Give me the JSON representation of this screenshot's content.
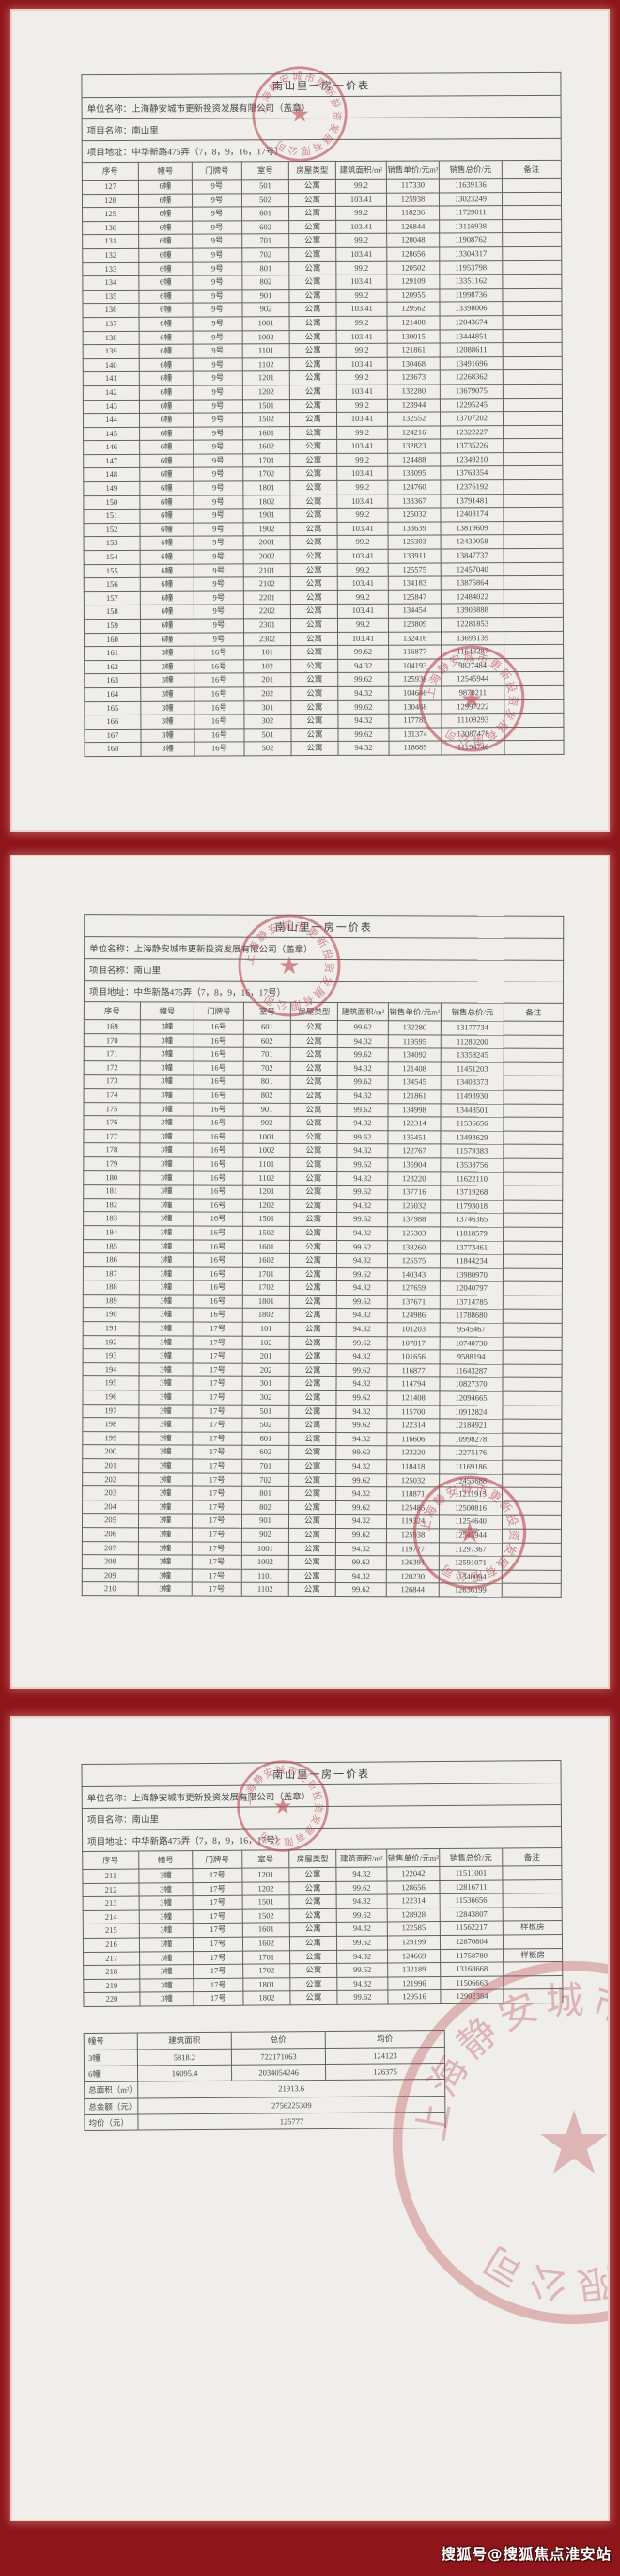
{
  "watermark": "搜狐号@搜狐焦点淮安站",
  "colors": {
    "background": "#8e1519",
    "page": "#efeeea",
    "seal": "#bc4950",
    "line": "#63625d"
  },
  "seal": {
    "text": "上海静安城市更新投资发展有限公司"
  },
  "header": {
    "title": "南山里一房一价表",
    "unit_line": "单位名称：上海静安城市更新投资发展有限公司（盖章）",
    "project_line": "项目名称：南山里",
    "address_line": "项目地址：中华新路475弄（7，8，9，16，17号）"
  },
  "columns": [
    "序号",
    "幢号",
    "门牌号",
    "室号",
    "房屋类型",
    "建筑面积/m²",
    "销售单价/元m²",
    "销售总价/元",
    "备注"
  ],
  "pages": [
    {
      "rows": [
        [
          "127",
          "6幢",
          "9号",
          "501",
          "公寓",
          "99.2",
          "117330",
          "11639136",
          ""
        ],
        [
          "128",
          "6幢",
          "9号",
          "502",
          "公寓",
          "103.41",
          "125938",
          "13023249",
          ""
        ],
        [
          "129",
          "6幢",
          "9号",
          "601",
          "公寓",
          "99.2",
          "118236",
          "11729011",
          ""
        ],
        [
          "130",
          "6幢",
          "9号",
          "602",
          "公寓",
          "103.41",
          "126844",
          "13116938",
          ""
        ],
        [
          "131",
          "6幢",
          "9号",
          "701",
          "公寓",
          "99.2",
          "120048",
          "11908762",
          ""
        ],
        [
          "132",
          "6幢",
          "9号",
          "702",
          "公寓",
          "103.41",
          "128656",
          "13304317",
          ""
        ],
        [
          "133",
          "6幢",
          "9号",
          "801",
          "公寓",
          "99.2",
          "120502",
          "11953798",
          ""
        ],
        [
          "134",
          "6幢",
          "9号",
          "802",
          "公寓",
          "103.41",
          "129109",
          "13351162",
          ""
        ],
        [
          "135",
          "6幢",
          "9号",
          "901",
          "公寓",
          "99.2",
          "120955",
          "11998736",
          ""
        ],
        [
          "136",
          "6幢",
          "9号",
          "902",
          "公寓",
          "103.41",
          "129562",
          "13398006",
          ""
        ],
        [
          "137",
          "6幢",
          "9号",
          "1001",
          "公寓",
          "99.2",
          "121408",
          "12043674",
          ""
        ],
        [
          "138",
          "6幢",
          "9号",
          "1002",
          "公寓",
          "103.41",
          "130015",
          "13444851",
          ""
        ],
        [
          "139",
          "6幢",
          "9号",
          "1101",
          "公寓",
          "99.2",
          "121861",
          "12088611",
          ""
        ],
        [
          "140",
          "6幢",
          "9号",
          "1102",
          "公寓",
          "103.41",
          "130468",
          "13491696",
          ""
        ],
        [
          "141",
          "6幢",
          "9号",
          "1201",
          "公寓",
          "99.2",
          "123673",
          "12268362",
          ""
        ],
        [
          "142",
          "6幢",
          "9号",
          "1202",
          "公寓",
          "103.41",
          "132280",
          "13679075",
          ""
        ],
        [
          "143",
          "6幢",
          "9号",
          "1501",
          "公寓",
          "99.2",
          "123944",
          "12295245",
          ""
        ],
        [
          "144",
          "6幢",
          "9号",
          "1502",
          "公寓",
          "103.41",
          "132552",
          "13707202",
          ""
        ],
        [
          "145",
          "6幢",
          "9号",
          "1601",
          "公寓",
          "99.2",
          "124216",
          "12322227",
          ""
        ],
        [
          "146",
          "6幢",
          "9号",
          "1602",
          "公寓",
          "103.41",
          "132823",
          "13735226",
          ""
        ],
        [
          "147",
          "6幢",
          "9号",
          "1701",
          "公寓",
          "99.2",
          "124488",
          "12349210",
          ""
        ],
        [
          "148",
          "6幢",
          "9号",
          "1702",
          "公寓",
          "103.41",
          "133095",
          "13763354",
          ""
        ],
        [
          "149",
          "6幢",
          "9号",
          "1801",
          "公寓",
          "99.2",
          "124760",
          "12376192",
          ""
        ],
        [
          "150",
          "6幢",
          "9号",
          "1802",
          "公寓",
          "103.41",
          "133367",
          "13791481",
          ""
        ],
        [
          "151",
          "6幢",
          "9号",
          "1901",
          "公寓",
          "99.2",
          "125032",
          "12403174",
          ""
        ],
        [
          "152",
          "6幢",
          "9号",
          "1902",
          "公寓",
          "103.41",
          "133639",
          "13819609",
          ""
        ],
        [
          "153",
          "6幢",
          "9号",
          "2001",
          "公寓",
          "99.2",
          "125303",
          "12430058",
          ""
        ],
        [
          "154",
          "6幢",
          "9号",
          "2002",
          "公寓",
          "103.41",
          "133911",
          "13847737",
          ""
        ],
        [
          "155",
          "6幢",
          "9号",
          "2101",
          "公寓",
          "99.2",
          "125575",
          "12457040",
          ""
        ],
        [
          "156",
          "6幢",
          "9号",
          "2102",
          "公寓",
          "103.41",
          "134183",
          "13875864",
          ""
        ],
        [
          "157",
          "6幢",
          "9号",
          "2201",
          "公寓",
          "99.2",
          "125847",
          "12484022",
          ""
        ],
        [
          "158",
          "6幢",
          "9号",
          "2202",
          "公寓",
          "103.41",
          "134454",
          "13903888",
          ""
        ],
        [
          "159",
          "6幢",
          "9号",
          "2301",
          "公寓",
          "99.2",
          "123809",
          "12281853",
          ""
        ],
        [
          "160",
          "6幢",
          "9号",
          "2302",
          "公寓",
          "103.41",
          "132416",
          "13693139",
          ""
        ],
        [
          "161",
          "3幢",
          "16号",
          "101",
          "公寓",
          "99.62",
          "116877",
          "11643287",
          ""
        ],
        [
          "162",
          "3幢",
          "16号",
          "102",
          "公寓",
          "94.32",
          "104193",
          "9827484",
          ""
        ],
        [
          "163",
          "3幢",
          "16号",
          "201",
          "公寓",
          "99.62",
          "125938",
          "12545944",
          ""
        ],
        [
          "164",
          "3幢",
          "16号",
          "202",
          "公寓",
          "94.32",
          "104646",
          "9870211",
          ""
        ],
        [
          "165",
          "3幢",
          "16号",
          "301",
          "公寓",
          "99.62",
          "130468",
          "12997222",
          ""
        ],
        [
          "166",
          "3幢",
          "16号",
          "302",
          "公寓",
          "94.32",
          "117783",
          "11109293",
          ""
        ],
        [
          "167",
          "3幢",
          "16号",
          "501",
          "公寓",
          "99.62",
          "131374",
          "13087478",
          ""
        ],
        [
          "168",
          "3幢",
          "16号",
          "502",
          "公寓",
          "94.32",
          "118689",
          "11194746",
          ""
        ]
      ]
    },
    {
      "rows": [
        [
          "169",
          "3幢",
          "16号",
          "601",
          "公寓",
          "99.62",
          "132280",
          "13177734",
          ""
        ],
        [
          "170",
          "3幢",
          "16号",
          "602",
          "公寓",
          "94.32",
          "119595",
          "11280200",
          ""
        ],
        [
          "171",
          "3幢",
          "16号",
          "701",
          "公寓",
          "99.62",
          "134092",
          "13358245",
          ""
        ],
        [
          "172",
          "3幢",
          "16号",
          "702",
          "公寓",
          "94.32",
          "121408",
          "11451203",
          ""
        ],
        [
          "173",
          "3幢",
          "16号",
          "801",
          "公寓",
          "99.62",
          "134545",
          "13403373",
          ""
        ],
        [
          "174",
          "3幢",
          "16号",
          "802",
          "公寓",
          "94.32",
          "121861",
          "11493930",
          ""
        ],
        [
          "175",
          "3幢",
          "16号",
          "901",
          "公寓",
          "99.62",
          "134998",
          "13448501",
          ""
        ],
        [
          "176",
          "3幢",
          "16号",
          "902",
          "公寓",
          "94.32",
          "122314",
          "11536656",
          ""
        ],
        [
          "177",
          "3幢",
          "16号",
          "1001",
          "公寓",
          "99.62",
          "135451",
          "13493629",
          ""
        ],
        [
          "178",
          "3幢",
          "16号",
          "1002",
          "公寓",
          "94.32",
          "122767",
          "11579383",
          ""
        ],
        [
          "179",
          "3幢",
          "16号",
          "1101",
          "公寓",
          "99.62",
          "135904",
          "13538756",
          ""
        ],
        [
          "180",
          "3幢",
          "16号",
          "1102",
          "公寓",
          "94.32",
          "123220",
          "11622110",
          ""
        ],
        [
          "181",
          "3幢",
          "16号",
          "1201",
          "公寓",
          "99.62",
          "137716",
          "13719268",
          ""
        ],
        [
          "182",
          "3幢",
          "16号",
          "1202",
          "公寓",
          "94.32",
          "125032",
          "11793018",
          ""
        ],
        [
          "183",
          "3幢",
          "16号",
          "1501",
          "公寓",
          "99.62",
          "137988",
          "13746365",
          ""
        ],
        [
          "184",
          "3幢",
          "16号",
          "1502",
          "公寓",
          "94.32",
          "125303",
          "11818579",
          ""
        ],
        [
          "185",
          "3幢",
          "16号",
          "1601",
          "公寓",
          "99.62",
          "138260",
          "13773461",
          ""
        ],
        [
          "186",
          "3幢",
          "16号",
          "1602",
          "公寓",
          "94.32",
          "125575",
          "11844234",
          ""
        ],
        [
          "187",
          "3幢",
          "16号",
          "1701",
          "公寓",
          "99.62",
          "140343",
          "13980970",
          ""
        ],
        [
          "188",
          "3幢",
          "16号",
          "1702",
          "公寓",
          "94.32",
          "127659",
          "12040797",
          ""
        ],
        [
          "189",
          "3幢",
          "16号",
          "1801",
          "公寓",
          "99.62",
          "137671",
          "13714785",
          ""
        ],
        [
          "190",
          "3幢",
          "16号",
          "1802",
          "公寓",
          "94.32",
          "124986",
          "11788680",
          ""
        ],
        [
          "191",
          "3幢",
          "17号",
          "101",
          "公寓",
          "94.32",
          "101203",
          "9545467",
          ""
        ],
        [
          "192",
          "3幢",
          "17号",
          "102",
          "公寓",
          "99.62",
          "107817",
          "10740730",
          ""
        ],
        [
          "193",
          "3幢",
          "17号",
          "201",
          "公寓",
          "94.32",
          "101656",
          "9588194",
          ""
        ],
        [
          "194",
          "3幢",
          "17号",
          "202",
          "公寓",
          "99.62",
          "116877",
          "11643287",
          ""
        ],
        [
          "195",
          "3幢",
          "17号",
          "301",
          "公寓",
          "94.32",
          "114794",
          "10827370",
          ""
        ],
        [
          "196",
          "3幢",
          "17号",
          "302",
          "公寓",
          "99.62",
          "121408",
          "12094665",
          ""
        ],
        [
          "197",
          "3幢",
          "17号",
          "501",
          "公寓",
          "94.32",
          "115700",
          "10912824",
          ""
        ],
        [
          "198",
          "3幢",
          "17号",
          "502",
          "公寓",
          "99.62",
          "122314",
          "12184921",
          ""
        ],
        [
          "199",
          "3幢",
          "17号",
          "601",
          "公寓",
          "94.32",
          "116606",
          "10998278",
          ""
        ],
        [
          "200",
          "3幢",
          "17号",
          "602",
          "公寓",
          "99.62",
          "123220",
          "12275176",
          ""
        ],
        [
          "201",
          "3幢",
          "17号",
          "701",
          "公寓",
          "94.32",
          "118418",
          "11169186",
          ""
        ],
        [
          "202",
          "3幢",
          "17号",
          "702",
          "公寓",
          "99.62",
          "125032",
          "12455688",
          ""
        ],
        [
          "203",
          "3幢",
          "17号",
          "801",
          "公寓",
          "94.32",
          "118871",
          "11211913",
          ""
        ],
        [
          "204",
          "3幢",
          "17号",
          "802",
          "公寓",
          "99.62",
          "125485",
          "12500816",
          ""
        ],
        [
          "205",
          "3幢",
          "17号",
          "901",
          "公寓",
          "94.32",
          "119324",
          "11254640",
          ""
        ],
        [
          "206",
          "3幢",
          "17号",
          "902",
          "公寓",
          "99.62",
          "125938",
          "12545944",
          ""
        ],
        [
          "207",
          "3幢",
          "17号",
          "1001",
          "公寓",
          "94.32",
          "119777",
          "11297367",
          ""
        ],
        [
          "208",
          "3幢",
          "17号",
          "1002",
          "公寓",
          "99.62",
          "126391",
          "12591071",
          ""
        ],
        [
          "209",
          "3幢",
          "17号",
          "1101",
          "公寓",
          "94.32",
          "120230",
          "11340094",
          ""
        ],
        [
          "210",
          "3幢",
          "17号",
          "1102",
          "公寓",
          "99.62",
          "126844",
          "12636199",
          ""
        ]
      ]
    },
    {
      "rows": [
        [
          "211",
          "3幢",
          "17号",
          "1201",
          "公寓",
          "94.32",
          "122042",
          "11511001",
          ""
        ],
        [
          "212",
          "3幢",
          "17号",
          "1202",
          "公寓",
          "99.62",
          "128656",
          "12816711",
          ""
        ],
        [
          "213",
          "3幢",
          "17号",
          "1501",
          "公寓",
          "94.32",
          "122314",
          "11536656",
          ""
        ],
        [
          "214",
          "3幢",
          "17号",
          "1502",
          "公寓",
          "99.62",
          "128928",
          "12843807",
          ""
        ],
        [
          "215",
          "3幢",
          "17号",
          "1601",
          "公寓",
          "94.32",
          "122585",
          "11562217",
          "样板房"
        ],
        [
          "216",
          "3幢",
          "17号",
          "1602",
          "公寓",
          "99.62",
          "129199",
          "12870804",
          ""
        ],
        [
          "217",
          "3幢",
          "17号",
          "1701",
          "公寓",
          "94.32",
          "124669",
          "11758780",
          "样板房"
        ],
        [
          "218",
          "3幢",
          "17号",
          "1702",
          "公寓",
          "99.62",
          "132189",
          "13168668",
          ""
        ],
        [
          "219",
          "3幢",
          "17号",
          "1801",
          "公寓",
          "94.32",
          "121996",
          "11506663",
          ""
        ],
        [
          "220",
          "3幢",
          "17号",
          "1802",
          "公寓",
          "99.62",
          "129516",
          "12902384",
          ""
        ]
      ]
    }
  ],
  "summary": {
    "columns": [
      "幢号",
      "建筑面积",
      "总价",
      "均价"
    ],
    "rows": [
      [
        "3幢",
        "5818.2",
        "722171063",
        "124123"
      ],
      [
        "6幢",
        "16095.4",
        "2034054246",
        "126375"
      ]
    ],
    "totals": [
      [
        "总面积（m²）",
        "21913.6"
      ],
      [
        "总金额（元）",
        "2756225309"
      ],
      [
        "均价（元）",
        "125777"
      ]
    ]
  }
}
